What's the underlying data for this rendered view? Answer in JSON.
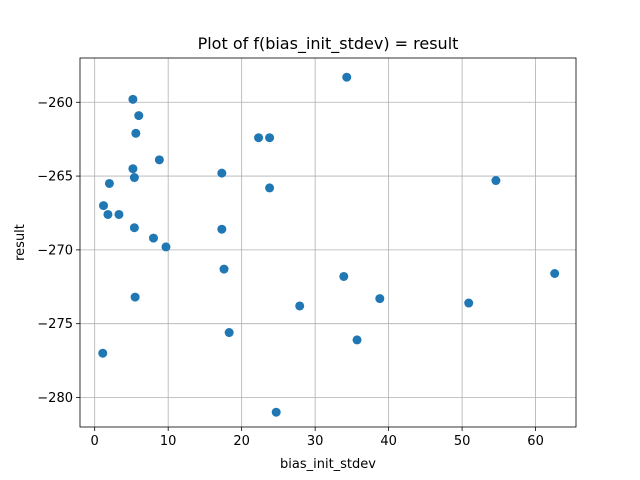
{
  "chart_data": {
    "type": "scatter",
    "title": "Plot of f(bias_init_stdev) = result",
    "xlabel": "bias_init_stdev",
    "ylabel": "result",
    "xlim": [
      -2,
      65.5
    ],
    "ylim": [
      -282,
      -257
    ],
    "xticks": [
      0,
      10,
      20,
      30,
      40,
      50,
      60
    ],
    "yticks": [
      -280,
      -275,
      -270,
      -265,
      -260
    ],
    "grid": true,
    "color": "#1f77b4",
    "points": [
      {
        "x": 5.2,
        "y": -259.8
      },
      {
        "x": 6.0,
        "y": -260.9
      },
      {
        "x": 5.6,
        "y": -262.1
      },
      {
        "x": 8.8,
        "y": -263.9
      },
      {
        "x": 5.2,
        "y": -264.5
      },
      {
        "x": 5.4,
        "y": -265.1
      },
      {
        "x": 2.0,
        "y": -265.5
      },
      {
        "x": 1.2,
        "y": -267.0
      },
      {
        "x": 1.8,
        "y": -267.6
      },
      {
        "x": 3.3,
        "y": -267.6
      },
      {
        "x": 5.4,
        "y": -268.5
      },
      {
        "x": 8.0,
        "y": -269.2
      },
      {
        "x": 9.7,
        "y": -269.8
      },
      {
        "x": 5.5,
        "y": -273.2
      },
      {
        "x": 1.1,
        "y": -277.0
      },
      {
        "x": 17.3,
        "y": -264.8
      },
      {
        "x": 17.3,
        "y": -268.6
      },
      {
        "x": 17.6,
        "y": -271.3
      },
      {
        "x": 18.3,
        "y": -275.6
      },
      {
        "x": 22.3,
        "y": -262.4
      },
      {
        "x": 23.8,
        "y": -262.4
      },
      {
        "x": 23.8,
        "y": -265.8
      },
      {
        "x": 24.7,
        "y": -281.0
      },
      {
        "x": 27.9,
        "y": -273.8
      },
      {
        "x": 34.3,
        "y": -258.3
      },
      {
        "x": 33.9,
        "y": -271.8
      },
      {
        "x": 35.7,
        "y": -276.1
      },
      {
        "x": 38.8,
        "y": -273.3
      },
      {
        "x": 50.9,
        "y": -273.6
      },
      {
        "x": 54.6,
        "y": -265.3
      },
      {
        "x": 62.6,
        "y": -271.6
      }
    ]
  }
}
